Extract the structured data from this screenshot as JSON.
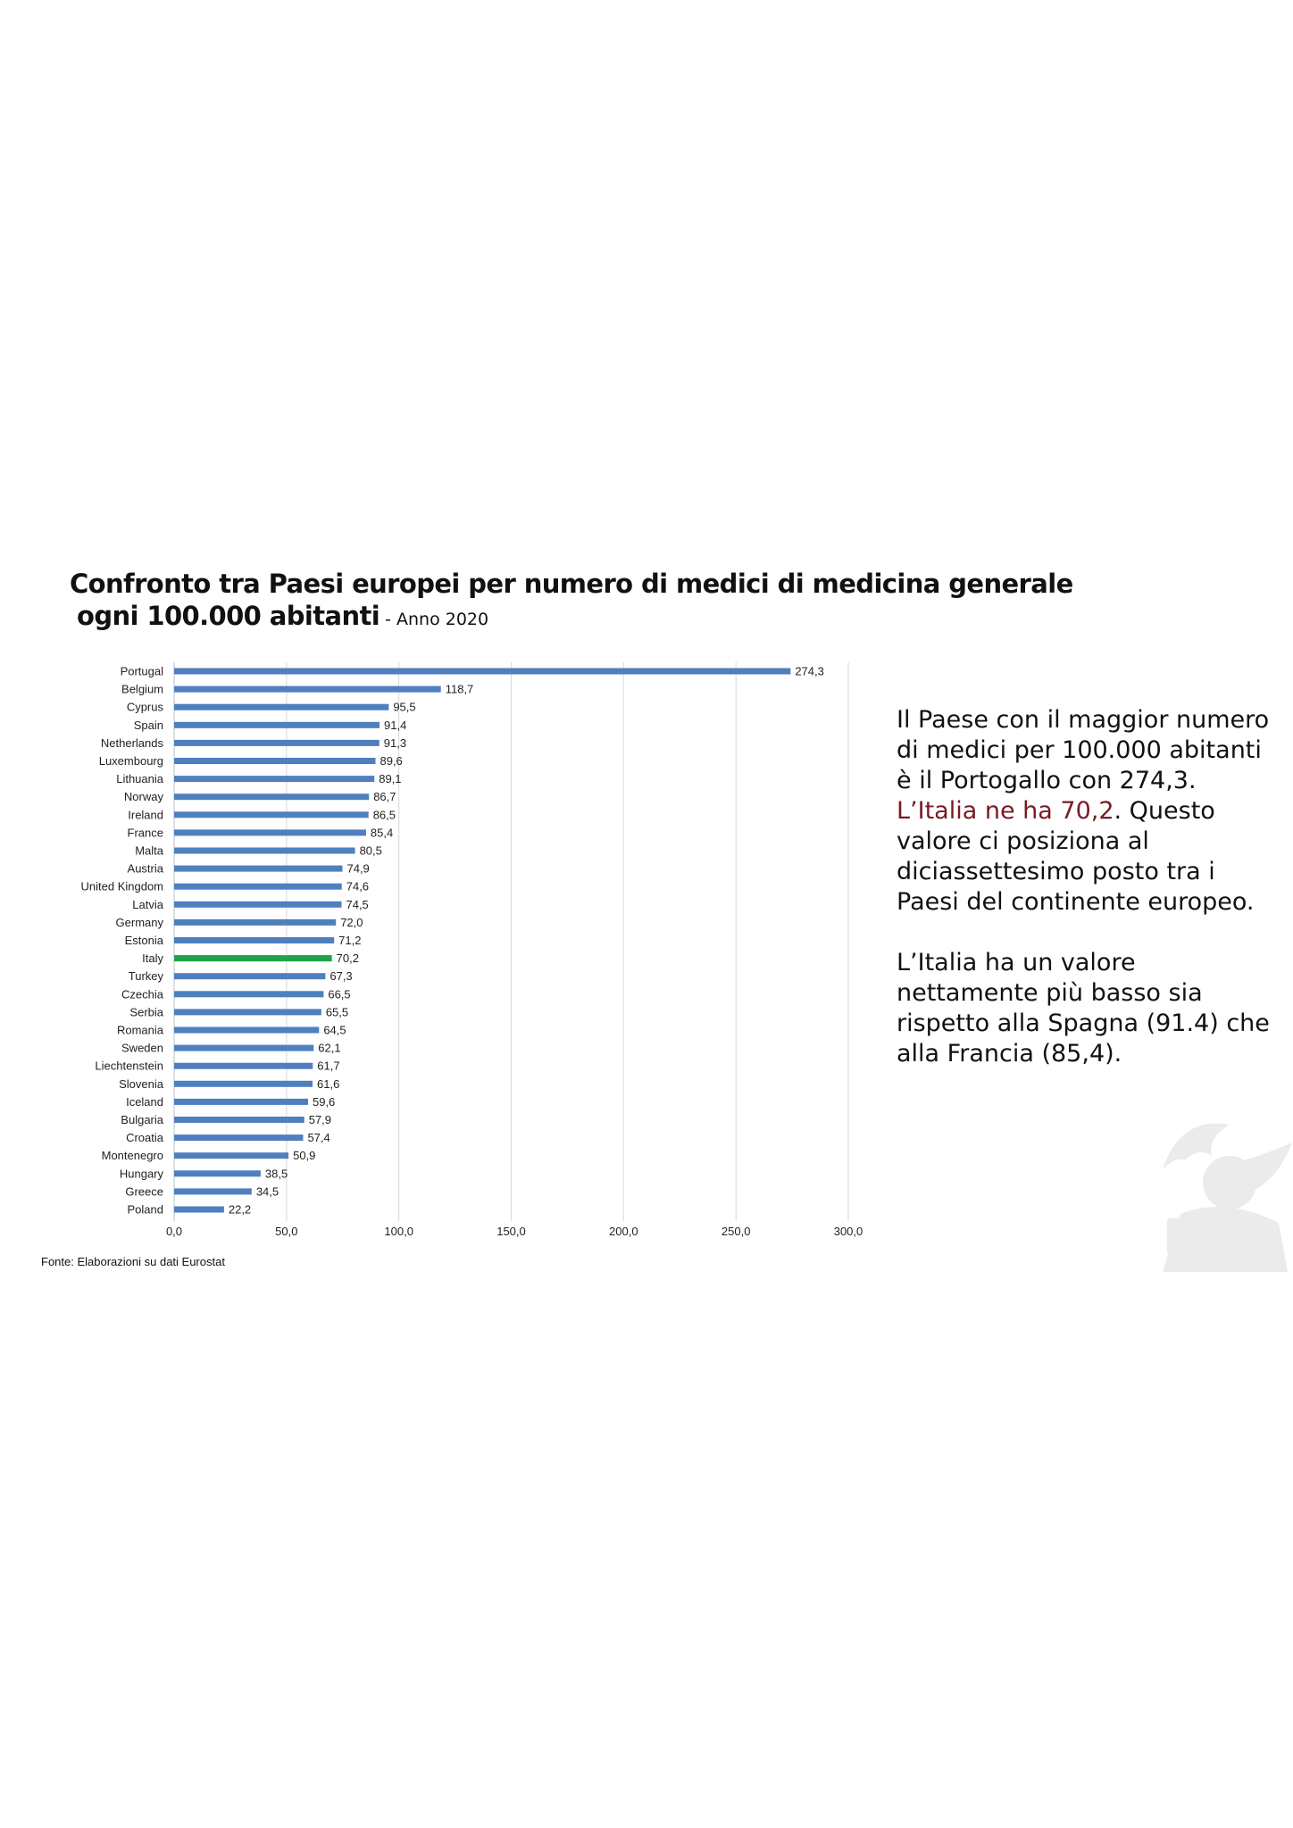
{
  "title": {
    "line1": "Confronto tra Paesi europei per numero di medici di medicina generale",
    "line2": "ogni 100.000 abitanti",
    "subtitle": "- Anno 2020"
  },
  "source": "Fonte: Elaborazioni su dati Eurostat",
  "side_text": {
    "p1_before": "Il Paese con il maggior numero di medici per 100.000 abitanti è il Portogallo con 274,3.",
    "p1_highlight": "L’Italia ne ha 70,2",
    "p1_after": ". Questo valore ci posiziona al diciassettesimo posto tra i Paesi del continente europeo.",
    "p2": "L’Italia ha un valore nettamente più basso sia rispetto alla Spagna (91.4) che alla Francia (85,4)."
  },
  "colors": {
    "bar": "#4f7fbe",
    "highlight_bar": "#1fa34a",
    "grid": "#d9d9d9",
    "highlight_text": "#7a1a24"
  },
  "watermark": {
    "icon": "winged-lion-emblem-icon"
  },
  "chart_data": {
    "type": "bar",
    "orientation": "horizontal",
    "categories": [
      "Portugal",
      "Belgium",
      "Cyprus",
      "Spain",
      "Netherlands",
      "Luxembourg",
      "Lithuania",
      "Norway",
      "Ireland",
      "France",
      "Malta",
      "Austria",
      "United Kingdom",
      "Latvia",
      "Germany",
      "Estonia",
      "Italy",
      "Turkey",
      "Czechia",
      "Serbia",
      "Romania",
      "Sweden",
      "Liechtenstein",
      "Slovenia",
      "Iceland",
      "Bulgaria",
      "Croatia",
      "Montenegro",
      "Hungary",
      "Greece",
      "Poland"
    ],
    "values": [
      274.3,
      118.7,
      95.5,
      91.4,
      91.3,
      89.6,
      89.1,
      86.7,
      86.5,
      85.4,
      80.5,
      74.9,
      74.6,
      74.5,
      72.0,
      71.2,
      70.2,
      67.3,
      66.5,
      65.5,
      64.5,
      62.1,
      61.7,
      61.6,
      59.6,
      57.9,
      57.4,
      50.9,
      38.5,
      34.5,
      22.2
    ],
    "value_labels": [
      "274,3",
      "118,7",
      "95,5",
      "91,4",
      "91,3",
      "89,6",
      "89,1",
      "86,7",
      "86,5",
      "85,4",
      "80,5",
      "74,9",
      "74,6",
      "74,5",
      "72,0",
      "71,2",
      "70,2",
      "67,3",
      "66,5",
      "65,5",
      "64,5",
      "62,1",
      "61,7",
      "61,6",
      "59,6",
      "57,9",
      "57,4",
      "50,9",
      "38,5",
      "34,5",
      "22,2"
    ],
    "highlight": "Italy",
    "xlim": [
      0,
      300
    ],
    "xticks": [
      0,
      50,
      100,
      150,
      200,
      250,
      300
    ],
    "xtick_labels": [
      "0,0",
      "50,0",
      "100,0",
      "150,0",
      "200,0",
      "250,0",
      "300,0"
    ],
    "grid": true,
    "legend": "none"
  }
}
